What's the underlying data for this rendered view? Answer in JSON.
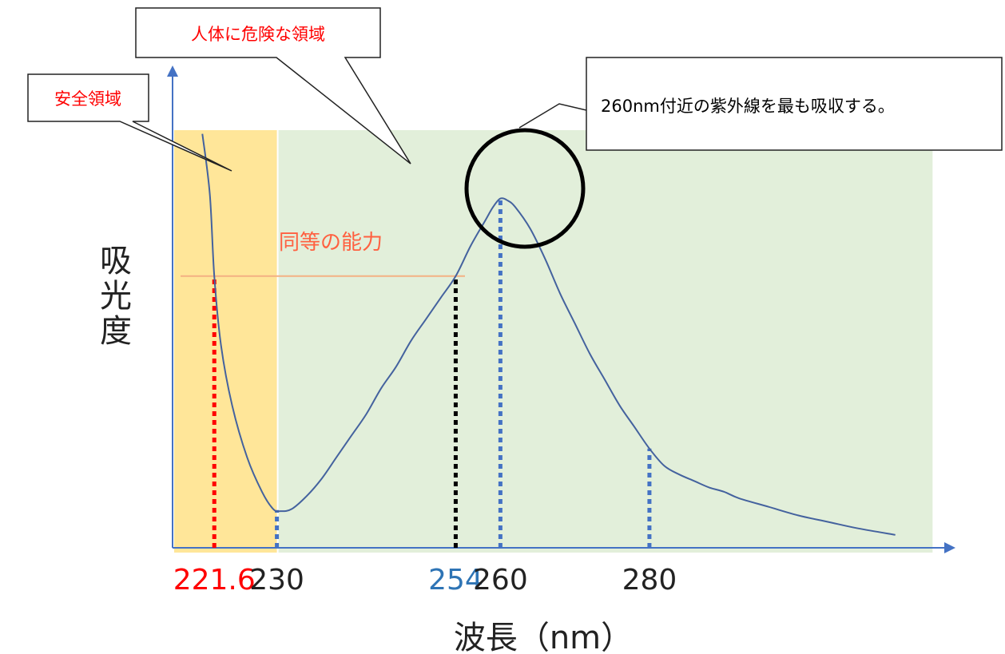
{
  "chart_data": {
    "type": "line",
    "title": "",
    "xlabel": "波長（nm）",
    "ylabel": "吸光度",
    "x_ticks": [
      {
        "value": 221.6,
        "label": "221.6",
        "color": "#ff0000",
        "marker_color": "#ff0000"
      },
      {
        "value": 230,
        "label": "230",
        "color": "#222222",
        "marker_color": "#4472c4"
      },
      {
        "value": 254,
        "label": "254",
        "color": "#2e74b5",
        "marker_color": "#000000"
      },
      {
        "value": 260,
        "label": "260",
        "color": "#222222",
        "marker_color": "#4472c4"
      },
      {
        "value": 280,
        "label": "280",
        "color": "#222222",
        "marker_color": "#4472c4"
      }
    ],
    "regions": [
      {
        "name": "safe",
        "from": 216,
        "to": 230,
        "color": "#ffe699"
      },
      {
        "name": "danger",
        "from": 230,
        "to": 318,
        "color": "#e2efda"
      }
    ],
    "series": [
      {
        "color": "#44629e",
        "x": [
          220,
          221,
          221.6,
          222.5,
          224,
          226,
          228,
          229.5,
          230.5,
          232,
          234,
          236,
          238,
          240,
          242,
          244,
          246,
          248,
          250,
          252,
          254,
          256,
          258,
          259,
          260,
          261,
          262,
          264,
          266,
          268,
          270,
          272,
          274,
          276,
          278,
          280,
          282,
          284,
          286,
          288,
          290,
          292,
          296,
          300,
          304,
          308,
          313
        ],
        "y": [
          0.96,
          0.82,
          0.63,
          0.47,
          0.33,
          0.21,
          0.13,
          0.09,
          0.085,
          0.09,
          0.12,
          0.16,
          0.21,
          0.26,
          0.31,
          0.37,
          0.42,
          0.48,
          0.53,
          0.58,
          0.63,
          0.7,
          0.76,
          0.79,
          0.81,
          0.805,
          0.79,
          0.74,
          0.67,
          0.59,
          0.52,
          0.45,
          0.39,
          0.33,
          0.28,
          0.23,
          0.19,
          0.17,
          0.155,
          0.14,
          0.13,
          0.115,
          0.095,
          0.075,
          0.06,
          0.045,
          0.03
        ]
      }
    ],
    "equal_line": {
      "y": 0.63,
      "label": "同等の能力",
      "color": "#f4b183",
      "label_color": "#ff6040"
    },
    "xlim": [
      216,
      320
    ],
    "ylim": [
      0,
      1.1
    ]
  },
  "callouts": {
    "safe": "安全領域",
    "danger": "人体に危険な領域",
    "peak": "260nm付近の紫外線を最も吸収する。"
  },
  "colors": {
    "axis": "#4472c4",
    "safe_text": "#ff0000",
    "danger_text": "#ff0000",
    "peak_text": "#000000",
    "circle": "#000000"
  }
}
